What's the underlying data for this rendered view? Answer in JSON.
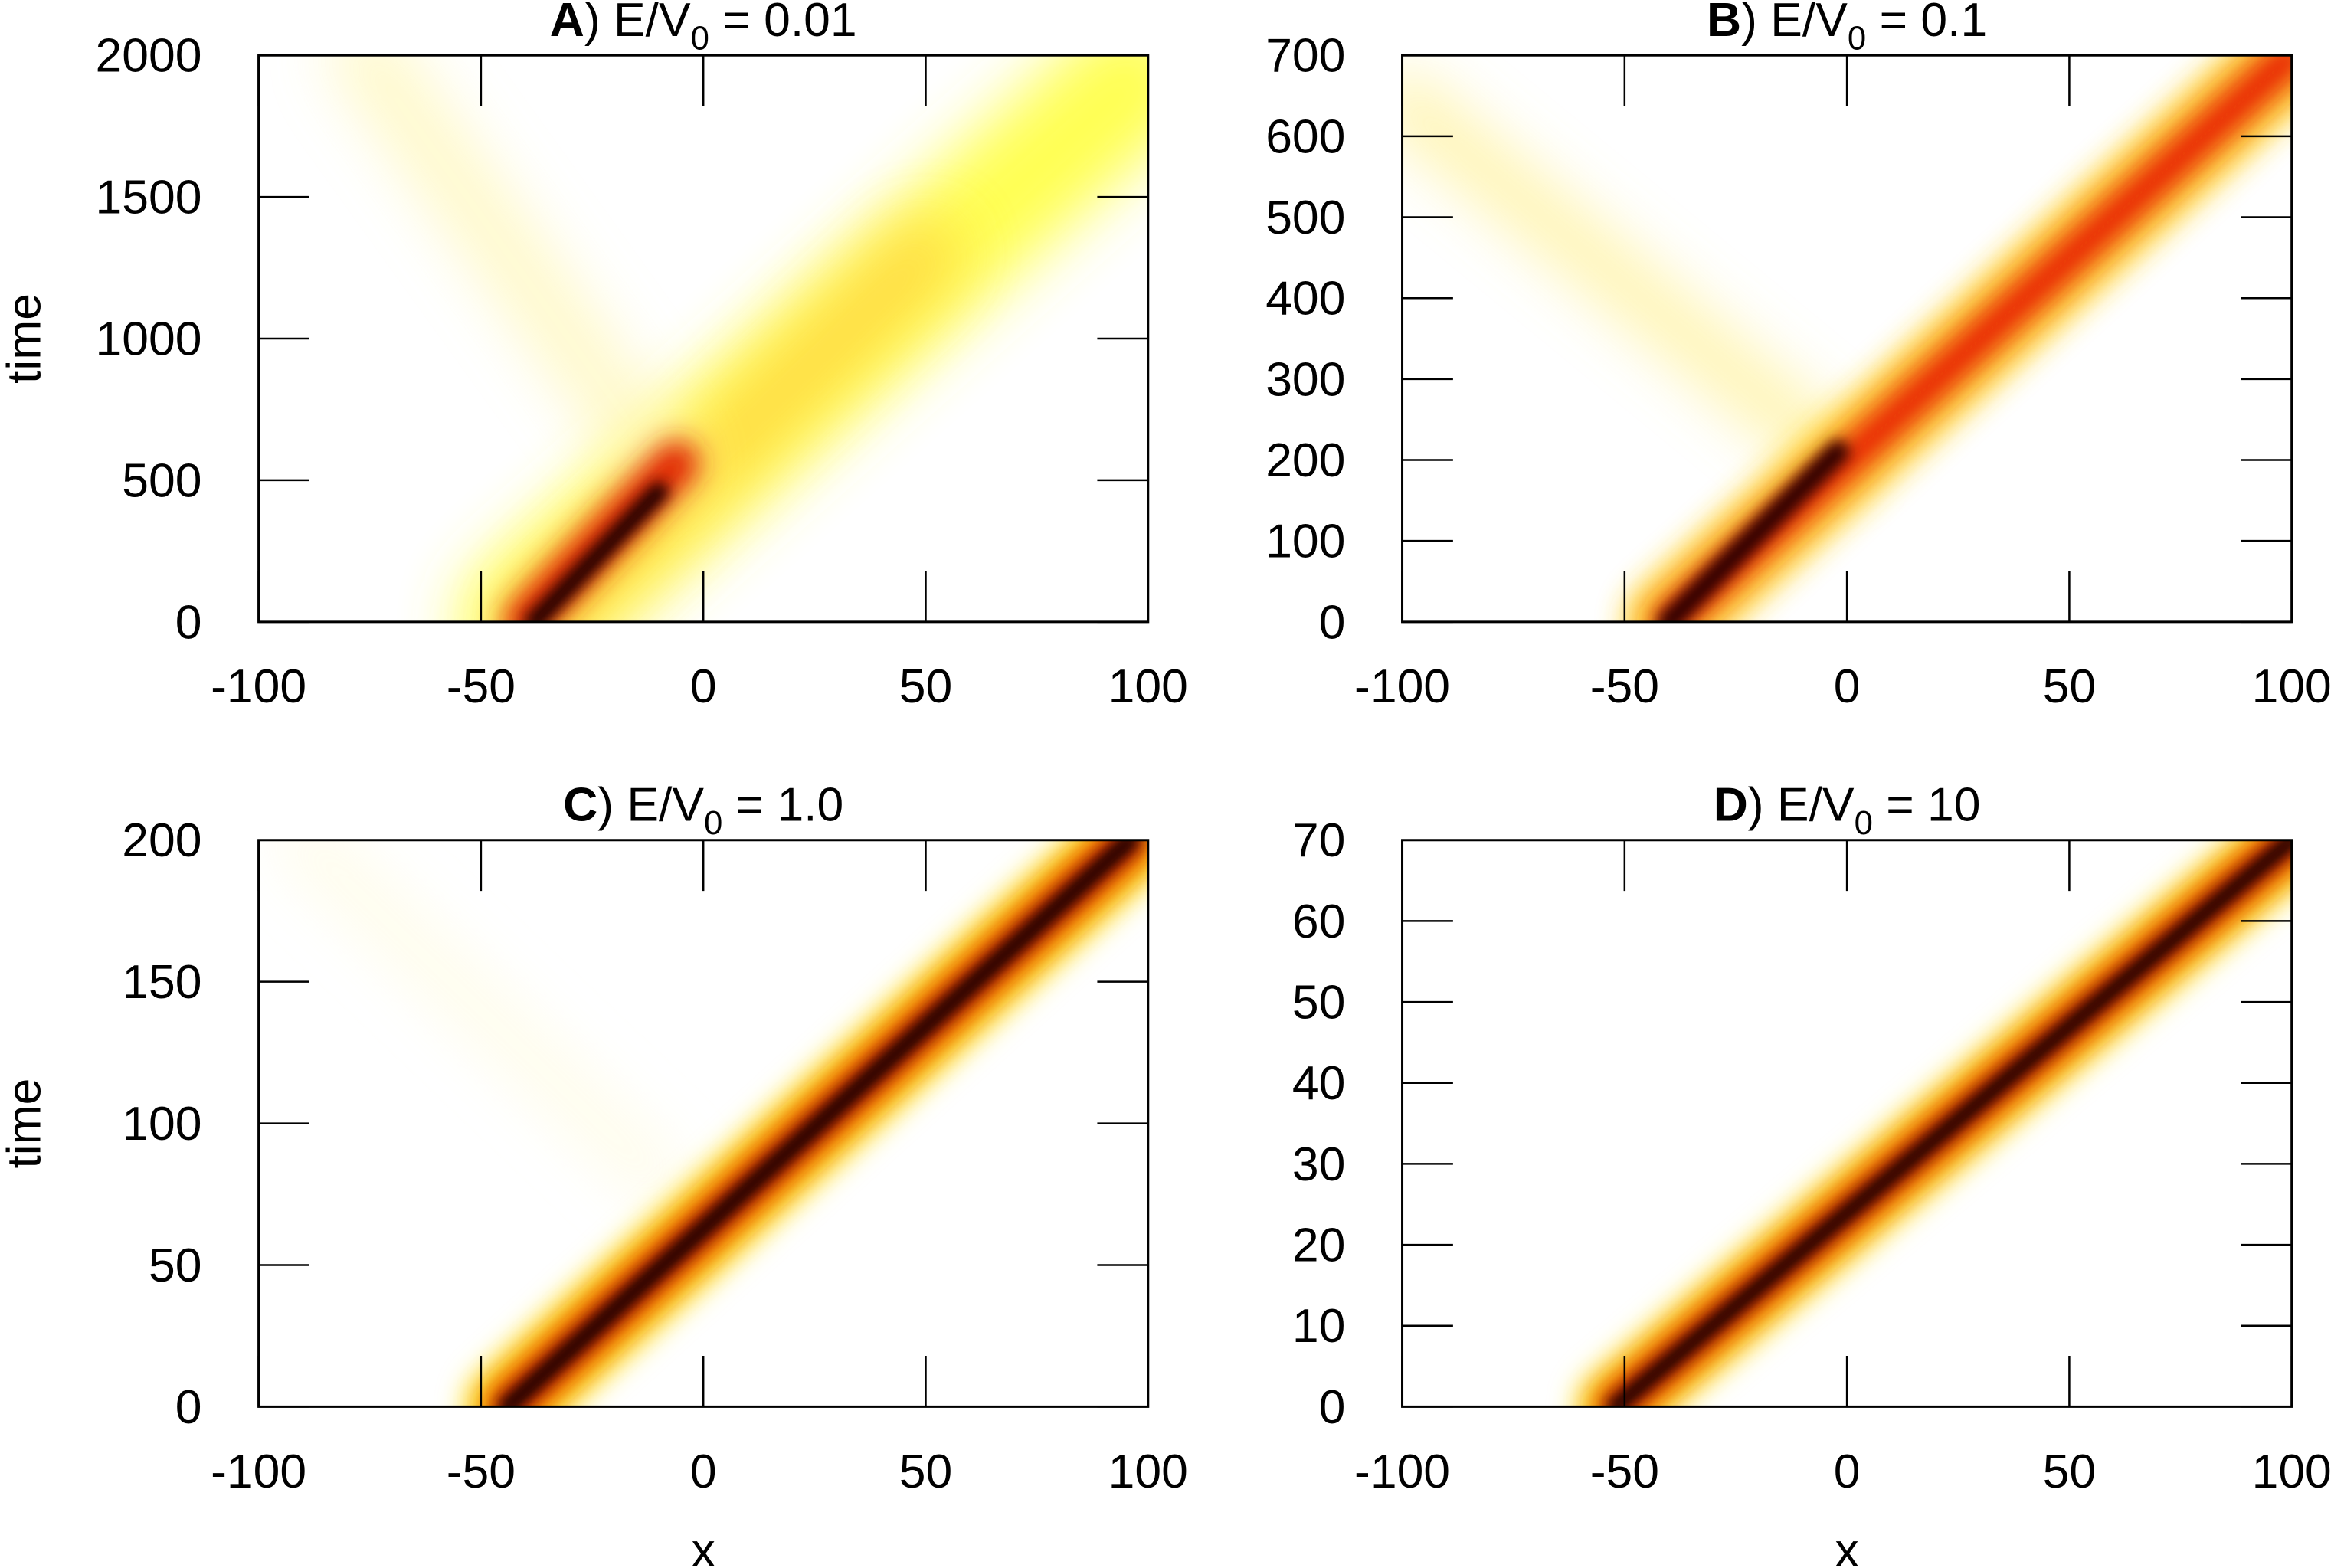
{
  "chart_data": [
    {
      "type": "heatmap",
      "title": [
        "A",
        ") E/V",
        "0",
        " = 0.01"
      ],
      "xlim": [
        -100,
        100
      ],
      "ylim": [
        0,
        2000
      ],
      "xticks": [
        -100,
        -50,
        0,
        50,
        100
      ],
      "yticks": [
        0,
        500,
        1000,
        1500,
        2000
      ],
      "ylabel": "time"
    },
    {
      "type": "heatmap",
      "title": [
        "B",
        ") E/V",
        "0",
        " = 0.1"
      ],
      "xlim": [
        -100,
        100
      ],
      "ylim": [
        0,
        700
      ],
      "xticks": [
        -100,
        -50,
        0,
        50,
        100
      ],
      "yticks": [
        0,
        100,
        200,
        300,
        400,
        500,
        600,
        700
      ]
    },
    {
      "type": "heatmap",
      "title": [
        "C",
        ") E/V",
        "0",
        " = 1.0"
      ],
      "xlim": [
        -100,
        100
      ],
      "ylim": [
        0,
        200
      ],
      "xticks": [
        -100,
        -50,
        0,
        50,
        100
      ],
      "yticks": [
        0,
        50,
        100,
        150,
        200
      ],
      "ylabel": "time",
      "xlabel": "x"
    },
    {
      "type": "heatmap",
      "title": [
        "D",
        ") E/V",
        "0",
        " = 10"
      ],
      "xlim": [
        -100,
        100
      ],
      "ylim": [
        0,
        70
      ],
      "xticks": [
        -100,
        -50,
        0,
        50,
        100
      ],
      "yticks": [
        0,
        10,
        20,
        30,
        40,
        50,
        60,
        70
      ],
      "xlabel": "x"
    }
  ]
}
